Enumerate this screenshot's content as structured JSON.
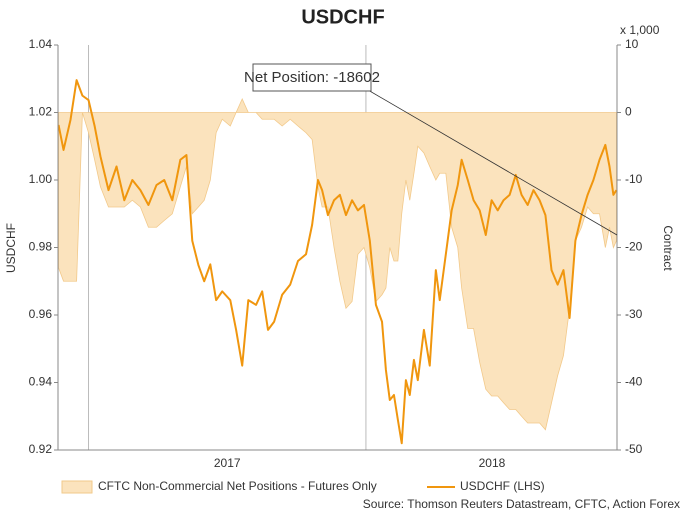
{
  "chart_data": {
    "type": "line",
    "title": "USDCHF",
    "y_label": "USDCHF",
    "y2_label": "Contract",
    "y2_unit": "x 1,000",
    "annotation": "Net Position: -18602",
    "source": "Source: Thomson Reuters Datastream, CFTC, Action Forex",
    "x": [
      2016.892,
      2016.91,
      2016.935,
      2016.957,
      2016.978,
      2017.0,
      2017.022,
      2017.043,
      2017.072,
      2017.101,
      2017.129,
      2017.158,
      2017.187,
      2017.216,
      2017.245,
      2017.273,
      2017.302,
      2017.331,
      2017.353,
      2017.374,
      2017.396,
      2017.417,
      2017.439,
      2017.46,
      2017.482,
      2017.511,
      2017.532,
      2017.554,
      2017.576,
      2017.604,
      2017.626,
      2017.647,
      2017.669,
      2017.698,
      2017.727,
      2017.755,
      2017.784,
      2017.806,
      2017.827,
      2017.842,
      2017.863,
      2017.885,
      2017.906,
      2017.928,
      2017.95,
      2017.971,
      2017.993,
      2018.014,
      2018.036,
      2018.058,
      2018.072,
      2018.086,
      2018.101,
      2018.115,
      2018.129,
      2018.144,
      2018.158,
      2018.173,
      2018.187,
      2018.209,
      2018.23,
      2018.252,
      2018.266,
      2018.288,
      2018.309,
      2018.331,
      2018.345,
      2018.367,
      2018.388,
      2018.41,
      2018.432,
      2018.453,
      2018.475,
      2018.496,
      2018.518,
      2018.54,
      2018.561,
      2018.583,
      2018.604,
      2018.626,
      2018.647,
      2018.669,
      2018.691,
      2018.712,
      2018.734,
      2018.755,
      2018.777,
      2018.799,
      2018.82,
      2018.842,
      2018.863,
      2018.878,
      2018.892,
      2018.903
    ],
    "xlim": [
      2016.89,
      2018.905
    ],
    "xticks": [
      2017,
      2018
    ],
    "ylim": [
      0.92,
      1.04
    ],
    "yticks": [
      0.92,
      0.94,
      0.96,
      0.98,
      {
        "value": 1,
        "label": "1.00"
      },
      1.02,
      1.04
    ],
    "y2lim": [
      -50,
      10
    ],
    "y2ticks": [
      -50,
      -40,
      -30,
      -20,
      -10,
      0,
      10
    ],
    "series": [
      {
        "name": "CFTC Non-Commercial Net Positions - Futures Only",
        "type": "area",
        "axis": "y2",
        "color": "#fbe3bd",
        "values": [
          -23,
          -25,
          -25,
          -25,
          0,
          -3,
          -7,
          -11,
          -14,
          -14,
          -14,
          -13,
          -14,
          -17,
          -17,
          -16,
          -15,
          -11,
          -8,
          -15,
          -14,
          -13,
          -10,
          -3,
          -1,
          -2,
          0,
          2,
          0,
          0,
          -1,
          -1,
          -1,
          -2,
          -1,
          -2,
          -3,
          -4,
          -11,
          -14,
          -14,
          -20,
          -25,
          -29,
          -28,
          -21,
          -20,
          -23,
          -28,
          -27,
          -26,
          -20,
          -22,
          -22,
          -15,
          -10,
          -13,
          -9,
          -5,
          -6,
          -8,
          -10,
          -9,
          -9,
          -17,
          -20,
          -26,
          -32,
          -32,
          -37,
          -41,
          -42,
          -42,
          -43,
          -44,
          -44,
          -45,
          -46,
          -46,
          -46,
          -47,
          -43,
          -39,
          -36,
          -29,
          -19,
          -17,
          -14,
          -15,
          -15,
          -20,
          -17,
          -20,
          -19
        ]
      },
      {
        "name": "USDCHF (LHS)",
        "type": "line",
        "color": "#f0960e",
        "values": [
          1.0163,
          1.0089,
          1.0178,
          1.0296,
          1.025,
          1.0237,
          1.016,
          1.007,
          0.997,
          1.004,
          0.994,
          1.0,
          0.997,
          0.9926,
          0.9985,
          1.0,
          0.994,
          1.006,
          1.0074,
          0.982,
          0.9748,
          0.97,
          0.975,
          0.9644,
          0.967,
          0.9644,
          0.9556,
          0.945,
          0.9644,
          0.963,
          0.967,
          0.9556,
          0.958,
          0.966,
          0.969,
          0.976,
          0.978,
          0.9867,
          1.0,
          0.997,
          0.9896,
          0.994,
          0.9956,
          0.9896,
          0.994,
          0.991,
          0.9926,
          0.982,
          0.963,
          0.958,
          0.9437,
          0.9348,
          0.9363,
          0.929,
          0.922,
          0.9407,
          0.9363,
          0.9467,
          0.9407,
          0.9556,
          0.945,
          0.9733,
          0.9644,
          0.978,
          0.991,
          0.9985,
          1.006,
          1.0,
          0.994,
          0.991,
          0.9837,
          0.994,
          0.991,
          0.994,
          0.9956,
          1.0015,
          0.9956,
          0.9926,
          0.997,
          0.994,
          0.9896,
          0.9733,
          0.969,
          0.9733,
          0.9591,
          0.982,
          0.9896,
          0.9956,
          1.0,
          1.006,
          1.0104,
          1.004,
          0.9956,
          0.997
        ]
      }
    ]
  }
}
